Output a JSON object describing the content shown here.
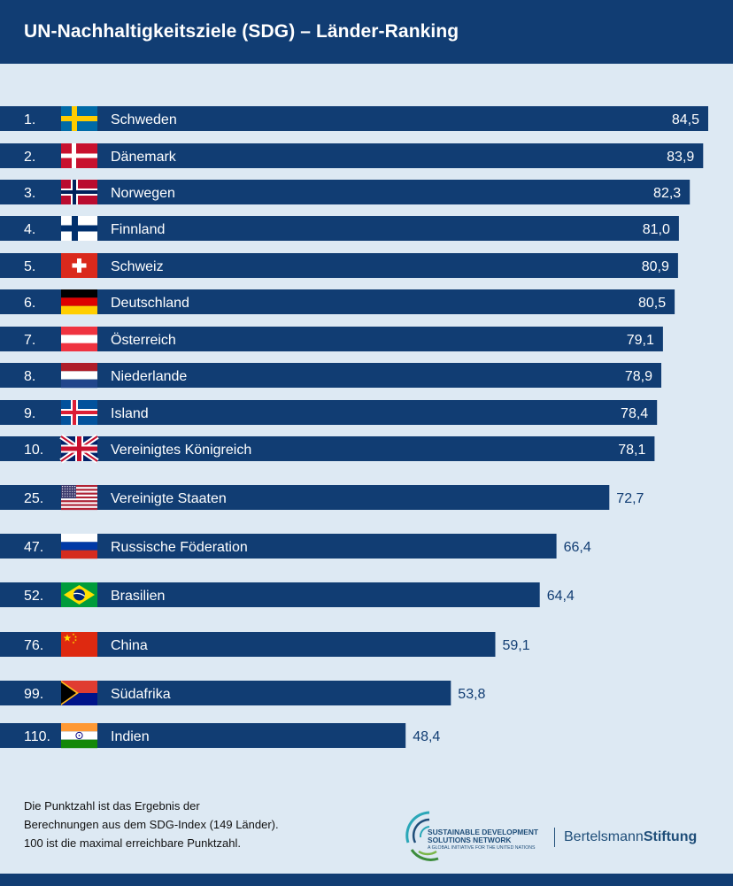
{
  "header": {
    "title": "UN-Nachhaltigkeitsziele (SDG) – Länder-Ranking"
  },
  "chart_data": {
    "type": "bar",
    "orientation": "horizontal",
    "title": "UN-Nachhaltigkeitsziele (SDG) – Länder-Ranking",
    "xlim": [
      0,
      100
    ],
    "grid": false,
    "legend": "none",
    "bar_color": "#113d73",
    "rows": [
      {
        "rank": "1.",
        "country": "Schweden",
        "value": 84.5,
        "label": "84,5",
        "flag": "sweden-flag-icon"
      },
      {
        "rank": "2.",
        "country": "Dänemark",
        "value": 83.9,
        "label": "83,9",
        "flag": "denmark-flag-icon"
      },
      {
        "rank": "3.",
        "country": "Norwegen",
        "value": 82.3,
        "label": "82,3",
        "flag": "norway-flag-icon"
      },
      {
        "rank": "4.",
        "country": "Finnland",
        "value": 81.0,
        "label": "81,0",
        "flag": "finland-flag-icon"
      },
      {
        "rank": "5.",
        "country": "Schweiz",
        "value": 80.9,
        "label": "80,9",
        "flag": "switzerland-flag-icon"
      },
      {
        "rank": "6.",
        "country": "Deutschland",
        "value": 80.5,
        "label": "80,5",
        "flag": "germany-flag-icon"
      },
      {
        "rank": "7.",
        "country": "Österreich",
        "value": 79.1,
        "label": "79,1",
        "flag": "austria-flag-icon"
      },
      {
        "rank": "8.",
        "country": "Niederlande",
        "value": 78.9,
        "label": "78,9",
        "flag": "netherlands-flag-icon"
      },
      {
        "rank": "9.",
        "country": "Island",
        "value": 78.4,
        "label": "78,4",
        "flag": "iceland-flag-icon"
      },
      {
        "rank": "10.",
        "country": "Vereinigtes Königreich",
        "value": 78.1,
        "label": "78,1",
        "flag": "uk-flag-icon"
      },
      {
        "rank": "25.",
        "country": "Vereinigte Staaten",
        "value": 72.7,
        "label": "72,7",
        "flag": "usa-flag-icon"
      },
      {
        "rank": "47.",
        "country": "Russische Föderation",
        "value": 66.4,
        "label": "66,4",
        "flag": "russia-flag-icon"
      },
      {
        "rank": "52.",
        "country": "Brasilien",
        "value": 64.4,
        "label": "64,4",
        "flag": "brazil-flag-icon"
      },
      {
        "rank": "76.",
        "country": "China",
        "value": 59.1,
        "label": "59,1",
        "flag": "china-flag-icon"
      },
      {
        "rank": "99.",
        "country": "Südafrika",
        "value": 53.8,
        "label": "53,8",
        "flag": "south-africa-flag-icon"
      },
      {
        "rank": "110.",
        "country": "Indien",
        "value": 48.4,
        "label": "48,4",
        "flag": "india-flag-icon"
      }
    ]
  },
  "footnote": {
    "line1": "Die Punktzahl ist das Ergebnis der",
    "line2": "Berechnungen aus dem SDG-Index (149 Länder).",
    "line3": "100 ist die maximal erreichbare Punktzahl."
  },
  "logos": {
    "sdsn_line1": "SUSTAINABLE DEVELOPMENT",
    "sdsn_line2": "SOLUTIONS NETWORK",
    "sdsn_line3": "A GLOBAL INITIATIVE FOR THE UNITED NATIONS",
    "bertelsmann_part1": "Bertelsmann",
    "bertelsmann_part2": "Stiftung"
  }
}
